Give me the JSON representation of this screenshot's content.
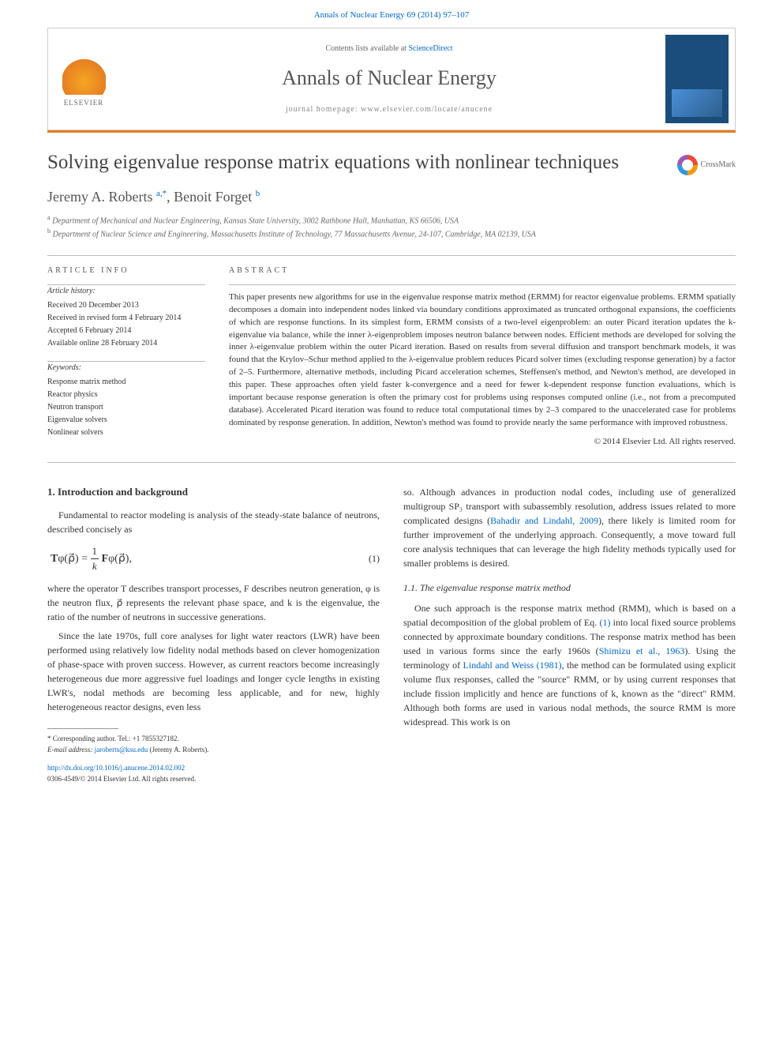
{
  "citation": "Annals of Nuclear Energy 69 (2014) 97–107",
  "header": {
    "contents_prefix": "Contents lists available at ",
    "contents_link": "ScienceDirect",
    "journal": "Annals of Nuclear Energy",
    "homepage_label": "journal homepage: ",
    "homepage_url": "www.elsevier.com/locate/anucene",
    "publisher": "ELSEVIER"
  },
  "crossmark_label": "CrossMark",
  "article": {
    "title": "Solving eigenvalue response matrix equations with nonlinear techniques",
    "authors_html": "Jeremy A. Roberts <sup>a,*</sup>, Benoit Forget <sup>b</sup>",
    "affiliations": [
      "a Department of Mechanical and Nuclear Engineering, Kansas State University, 3002 Rathbone Hall, Manhattan, KS 66506, USA",
      "b Department of Nuclear Science and Engineering, Massachusetts Institute of Technology, 77 Massachusetts Avenue, 24-107, Cambridge, MA 02139, USA"
    ]
  },
  "info": {
    "heading": "ARTICLE INFO",
    "history_label": "Article history:",
    "history": [
      "Received 20 December 2013",
      "Received in revised form 4 February 2014",
      "Accepted 6 February 2014",
      "Available online 28 February 2014"
    ],
    "keywords_label": "Keywords:",
    "keywords": [
      "Response matrix method",
      "Reactor physics",
      "Neutron transport",
      "Eigenvalue solvers",
      "Nonlinear solvers"
    ]
  },
  "abstract": {
    "heading": "ABSTRACT",
    "text": "This paper presents new algorithms for use in the eigenvalue response matrix method (ERMM) for reactor eigenvalue problems. ERMM spatially decomposes a domain into independent nodes linked via boundary conditions approximated as truncated orthogonal expansions, the coefficients of which are response functions. In its simplest form, ERMM consists of a two-level eigenproblem: an outer Picard iteration updates the k-eigenvalue via balance, while the inner λ-eigenproblem imposes neutron balance between nodes. Efficient methods are developed for solving the inner λ-eigenvalue problem within the outer Picard iteration. Based on results from several diffusion and transport benchmark models, it was found that the Krylov–Schur method applied to the λ-eigenvalue problem reduces Picard solver times (excluding response generation) by a factor of 2–5. Furthermore, alternative methods, including Picard acceleration schemes, Steffensen's method, and Newton's method, are developed in this paper. These approaches often yield faster k-convergence and a need for fewer k-dependent response function evaluations, which is important because response generation is often the primary cost for problems using responses computed online (i.e., not from a precomputed database). Accelerated Picard iteration was found to reduce total computational times by 2–3 compared to the unaccelerated case for problems dominated by response generation. In addition, Newton's method was found to provide nearly the same performance with improved robustness.",
    "copyright": "© 2014 Elsevier Ltd. All rights reserved."
  },
  "body": {
    "sec1_heading": "1. Introduction and background",
    "p1": "Fundamental to reactor modeling is analysis of the steady-state balance of neutrons, described concisely as",
    "eq1_num": "(1)",
    "p2": "where the operator T describes transport processes, F describes neutron generation, φ is the neutron flux, ρ⃗ represents the relevant phase space, and k is the eigenvalue, the ratio of the number of neutrons in successive generations.",
    "p3": "Since the late 1970s, full core analyses for light water reactors (LWR) have been performed using relatively low fidelity nodal methods based on clever homogenization of phase-space with proven success. However, as current reactors become increasingly heterogeneous due more aggressive fuel loadings and longer cycle lengths in existing LWR's, nodal methods are becoming less applicable, and for new, highly heterogeneous reactor designs, even less",
    "p4_pre": "so. Although advances in production nodal codes, including use of generalized multigroup SP₃ transport with subassembly resolution, address issues related to more complicated designs (",
    "p4_cite": "Bahadir and Lindahl, 2009",
    "p4_post": "), there likely is limited room for further improvement of the underlying approach. Consequently, a move toward full core analysis techniques that can leverage the high fidelity methods typically used for smaller problems is desired.",
    "subsec11_heading": "1.1. The eigenvalue response matrix method",
    "p5_pre": "One such approach is the response matrix method (RMM), which is based on a spatial decomposition of the global problem of Eq. ",
    "p5_eqref": "(1)",
    "p5_mid1": " into local fixed source problems connected by approximate boundary conditions. The response matrix method has been used in various forms since the early 1960s (",
    "p5_cite1": "Shimizu et al., 1963",
    "p5_mid2": "). Using the terminology of ",
    "p5_cite2": "Lindahl and Weiss (1981)",
    "p5_post": ", the method can be formulated using explicit volume flux responses, called the \"source\" RMM, or by using current responses that include fission implicitly and hence are functions of k, known as the \"direct\" RMM. Although both forms are used in various nodal methods, the source RMM is more widespread. This work is on"
  },
  "footnote": {
    "corr": "* Corresponding author. Tel.: +1 7855327182.",
    "email_label": "E-mail address: ",
    "email": "jaroberts@ksu.edu",
    "email_who": " (Jeremy A. Roberts)."
  },
  "doi": {
    "url": "http://dx.doi.org/10.1016/j.anucene.2014.02.002",
    "issn_line": "0306-4549/© 2014 Elsevier Ltd. All rights reserved."
  },
  "colors": {
    "link": "#0066cc",
    "accent": "#e67e22",
    "text": "#333333"
  }
}
